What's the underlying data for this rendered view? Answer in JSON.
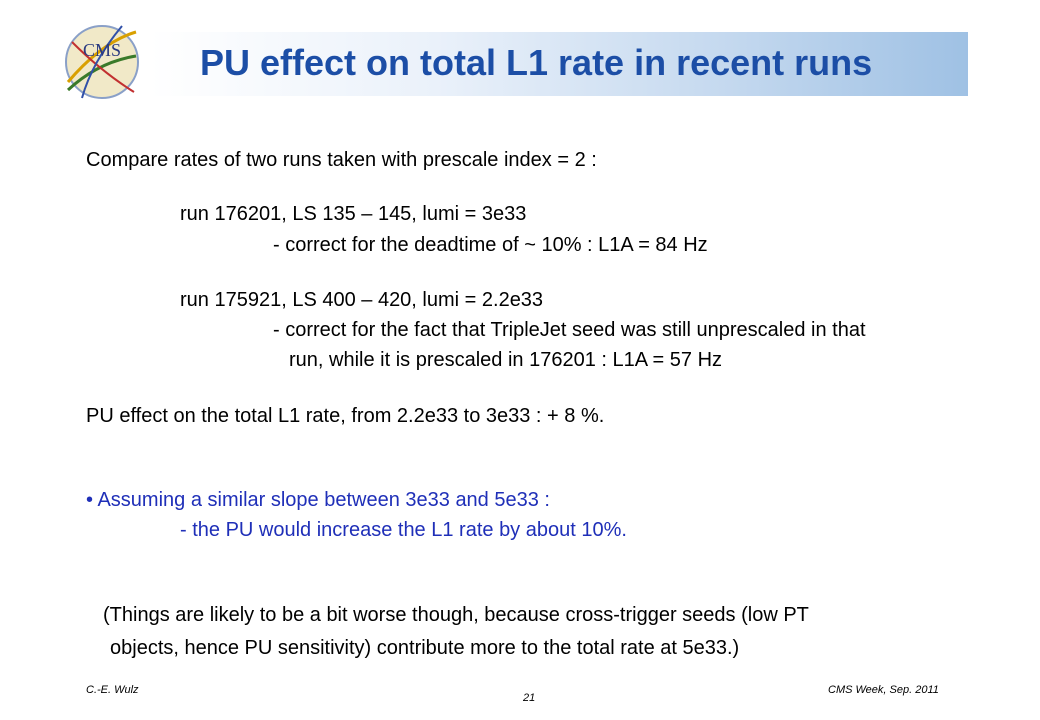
{
  "slide": {
    "title": "PU effect on total L1 rate in recent runs",
    "logo_text": "CMS",
    "lines": [
      "Compare rates of two runs taken with prescale index = 2 :",
      "run 176201,  LS 135 – 145, lumi = 3e33",
      "- correct for the deadtime of ~ 10%   :  L1A  = 84 Hz",
      "run 175921,  LS 400 – 420, lumi = 2.2e33",
      "- correct for the fact that TripleJet seed was still unprescaled in that",
      "run, while it is prescaled in 176201  :  L1A  = 57 Hz",
      "PU effect on the total L1 rate, from 2.2e33 to 3e33  :  + 8 %.",
      "Assuming a similar slope between 3e33 and 5e33 :",
      "- the PU would increase the L1 rate by about 10%.",
      "(Things are likely to be a bit worse though, because cross-trigger seeds (low PT",
      "objects, hence PU sensitivity) contribute more to the total rate at 5e33.)"
    ],
    "bullet": "•"
  },
  "footer": {
    "author": "C.-E. Wulz",
    "page": "21",
    "event": "CMS Week, Sep. 2011"
  },
  "colors": {
    "title": "#1c4ea6",
    "bullet_text": "#1f2fb8"
  }
}
